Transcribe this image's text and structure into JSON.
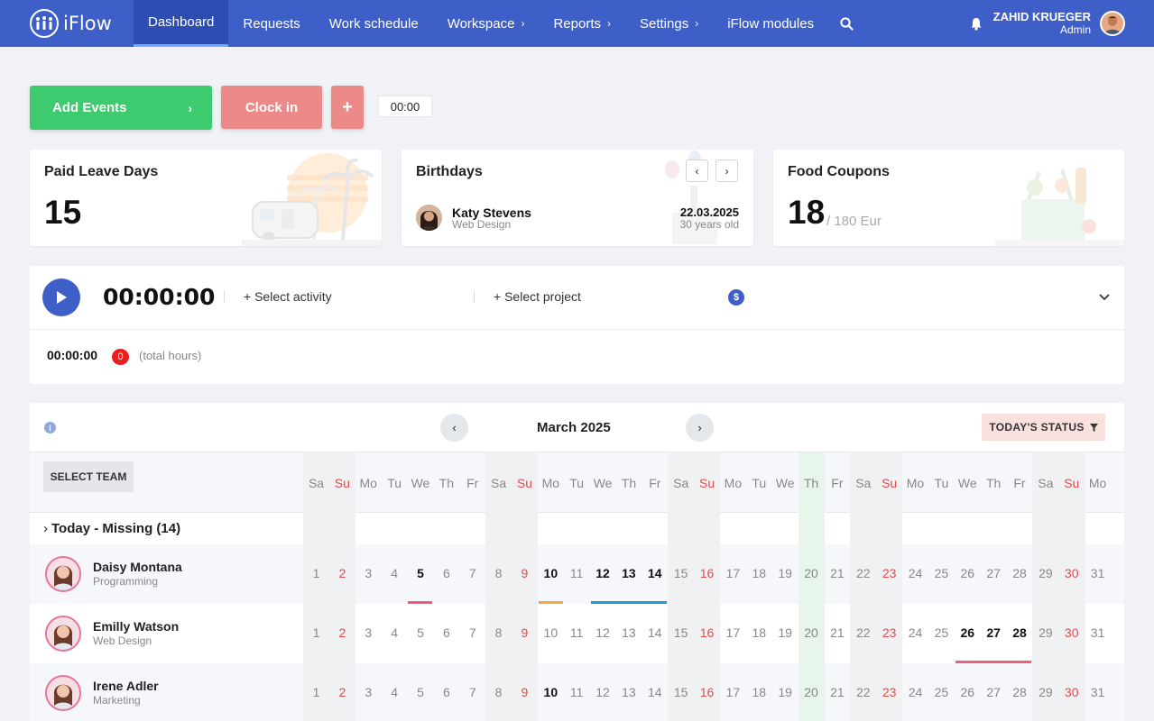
{
  "nav": {
    "brand": "iFlow",
    "items": [
      {
        "label": "Dashboard",
        "active": true,
        "has_chevron": false
      },
      {
        "label": "Requests",
        "active": false,
        "has_chevron": false
      },
      {
        "label": "Work schedule",
        "active": false,
        "has_chevron": false
      },
      {
        "label": "Workspace",
        "active": false,
        "has_chevron": true
      },
      {
        "label": "Reports",
        "active": false,
        "has_chevron": true
      },
      {
        "label": "Settings",
        "active": false,
        "has_chevron": true
      },
      {
        "label": "iFlow modules",
        "active": false,
        "has_chevron": false
      }
    ],
    "search_icon": "search-icon",
    "user": {
      "name": "ZAHID KRUEGER",
      "role": "Admin"
    }
  },
  "actions": {
    "add_events": "Add Events",
    "clock_in": "Clock in",
    "plus": "+",
    "timer": "00:00"
  },
  "cards": {
    "leave": {
      "title": "Paid Leave Days",
      "value": "15"
    },
    "birthdays": {
      "title": "Birthdays",
      "name": "Katy Stevens",
      "dept": "Web Design",
      "date": "22.03.2025",
      "age": "30 years old"
    },
    "food": {
      "title": "Food Coupons",
      "value": "18",
      "sub": "/ 180 Eur"
    }
  },
  "timer": {
    "time": "00:00:00",
    "select_activity": "Select activity",
    "select_project": "Select project",
    "total_time": "00:00:00",
    "total_badge": "0",
    "total_label": "(total hours)"
  },
  "calendar": {
    "month": "March 2025",
    "today_status": "TODAY'S STATUS",
    "select_team": "SELECT TEAM",
    "missing_label": "Today - Missing (14)",
    "weekdays": [
      "Sa",
      "Su",
      "Mo",
      "Tu",
      "We",
      "Th",
      "Fr",
      "Sa",
      "Su",
      "Mo",
      "Tu",
      "We",
      "Th",
      "Fr",
      "Sa",
      "Su",
      "Mo",
      "Tu",
      "We",
      "Th",
      "Fr",
      "Sa",
      "Su",
      "Mo",
      "Tu",
      "We",
      "Th",
      "Fr",
      "Sa",
      "Su",
      "Mo"
    ],
    "today_index": 19,
    "employees": [
      {
        "name": "Daisy Montana",
        "dept": "Programming",
        "bold_days": [
          5,
          10,
          12,
          13,
          14
        ],
        "events": [
          {
            "from": 5,
            "to": 5,
            "color": "#e9607e"
          },
          {
            "from": 10,
            "to": 10,
            "color": "#f2a541"
          },
          {
            "from": 12,
            "to": 14,
            "color": "#2196d3"
          }
        ]
      },
      {
        "name": "Emilly Watson",
        "dept": "Web Design",
        "bold_days": [
          26,
          27,
          28
        ],
        "events": [
          {
            "from": 26,
            "to": 28,
            "color": "#e9607e"
          }
        ]
      },
      {
        "name": "Irene Adler",
        "dept": "Marketing",
        "bold_days": [
          10
        ],
        "events": []
      }
    ]
  },
  "colors": {
    "nav": "#3e5fc8",
    "green": "#3ecb6f",
    "salmon": "#ec8a8a",
    "sunday": "#e04c4c"
  }
}
